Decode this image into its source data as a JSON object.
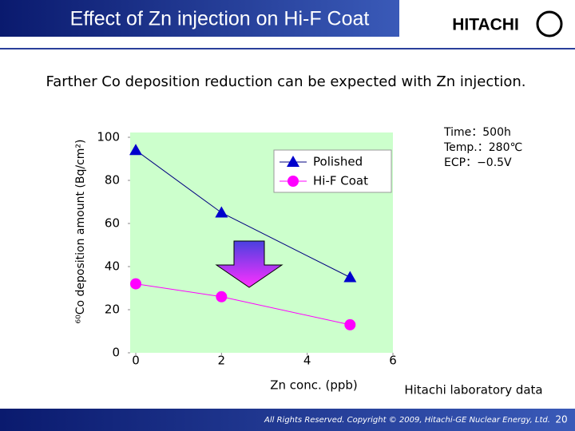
{
  "header": {
    "title": "Effect of Zn injection on Hi-F Coat",
    "logo": "HITACHI"
  },
  "subtitle": "Farther Co deposition reduction can be expected with Zn injection.",
  "chart_data": {
    "type": "line",
    "x": [
      0,
      2,
      5
    ],
    "series": [
      {
        "name": "Polished",
        "color": "#000080",
        "marker_color": "#0000cc",
        "marker": "triangle",
        "values": [
          94,
          65,
          35
        ]
      },
      {
        "name": "Hi-F Coat",
        "color": "#ff00ff",
        "marker_color": "#ff00ff",
        "marker": "circle",
        "values": [
          32,
          26,
          13
        ]
      }
    ],
    "xlim": [
      0,
      6
    ],
    "xticks": [
      0,
      2,
      4,
      6
    ],
    "ylim": [
      0,
      100
    ],
    "yticks": [
      0,
      20,
      40,
      60,
      80,
      100
    ],
    "x_label": "Zn conc. (ppb)",
    "y_label": "⁶⁰Co deposition amount (Bq/cm²)",
    "annotations": [
      "Time：500h",
      "Temp.：280℃",
      "ECP：−0.5V"
    ],
    "note": "Hitachi laboratory data",
    "grid": false,
    "legend": "upper right"
  },
  "footer": {
    "copyright": "All Rights Reserved. Copyright © 2009, Hitachi-GE Nuclear Energy, Ltd.",
    "page": "20"
  }
}
